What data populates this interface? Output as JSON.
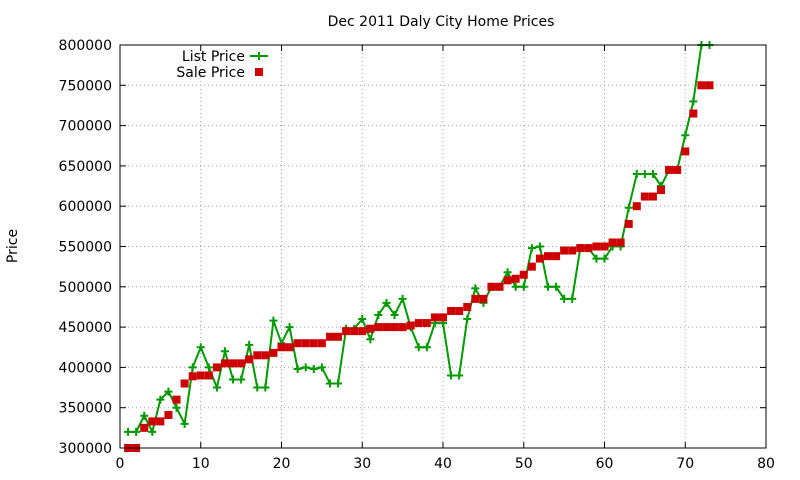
{
  "chart_data": {
    "type": "line",
    "title": "Dec 2011 Daly City Home Prices",
    "xlabel": "",
    "ylabel": "Price",
    "xlim": [
      0,
      80
    ],
    "ylim": [
      300000,
      800000
    ],
    "x_ticks": [
      0,
      10,
      20,
      30,
      40,
      50,
      60,
      70,
      80
    ],
    "y_ticks": [
      300000,
      350000,
      400000,
      450000,
      500000,
      550000,
      600000,
      650000,
      700000,
      750000,
      800000
    ],
    "grid": true,
    "legend_position": "top-left",
    "series": [
      {
        "name": "List Price",
        "marker": "plus",
        "line": true,
        "color": "#009900",
        "x": [
          1,
          2,
          3,
          4,
          5,
          6,
          7,
          8,
          9,
          10,
          11,
          12,
          13,
          14,
          15,
          16,
          17,
          18,
          19,
          20,
          21,
          22,
          23,
          24,
          25,
          26,
          27,
          28,
          29,
          30,
          31,
          32,
          33,
          34,
          35,
          36,
          37,
          38,
          39,
          40,
          41,
          42,
          43,
          44,
          45,
          46,
          47,
          48,
          49,
          50,
          51,
          52,
          53,
          54,
          55,
          56,
          57,
          58,
          59,
          60,
          61,
          62,
          63,
          64,
          65,
          66,
          67,
          68,
          69,
          70,
          71,
          72,
          73
        ],
        "y": [
          320000,
          320000,
          340000,
          320000,
          360000,
          370000,
          350000,
          330000,
          400000,
          425000,
          400000,
          375000,
          420000,
          385000,
          385000,
          428000,
          375000,
          375000,
          458000,
          430000,
          450000,
          398000,
          400000,
          398000,
          400000,
          380000,
          380000,
          448000,
          448000,
          460000,
          435000,
          465000,
          480000,
          465000,
          485000,
          450000,
          425000,
          425000,
          455000,
          455000,
          390000,
          390000,
          460000,
          498000,
          480000,
          500000,
          500000,
          518000,
          500000,
          500000,
          548000,
          550000,
          500000,
          500000,
          485000,
          485000,
          548000,
          548000,
          535000,
          535000,
          550000,
          550000,
          598000,
          640000,
          640000,
          640000,
          625000,
          645000,
          645000,
          688000,
          730000,
          800000,
          800000
        ]
      },
      {
        "name": "Sale Price",
        "marker": "square",
        "line": false,
        "color": "#cc0000",
        "x": [
          1,
          2,
          3,
          4,
          5,
          6,
          7,
          8,
          9,
          10,
          11,
          12,
          13,
          14,
          15,
          16,
          17,
          18,
          19,
          20,
          21,
          22,
          23,
          24,
          25,
          26,
          27,
          28,
          29,
          30,
          31,
          32,
          33,
          34,
          35,
          36,
          37,
          38,
          39,
          40,
          41,
          42,
          43,
          44,
          45,
          46,
          47,
          48,
          49,
          50,
          51,
          52,
          53,
          54,
          55,
          56,
          57,
          58,
          59,
          60,
          61,
          62,
          63,
          64,
          65,
          66,
          67,
          68,
          69,
          70,
          71,
          72,
          73
        ],
        "y": [
          300000,
          300000,
          325000,
          333000,
          333000,
          341000,
          360000,
          380000,
          389000,
          390000,
          390000,
          400000,
          405000,
          405000,
          405000,
          410000,
          415000,
          415000,
          418000,
          425000,
          425000,
          430000,
          430000,
          430000,
          430000,
          438000,
          438000,
          445000,
          445000,
          445000,
          448000,
          450000,
          450000,
          450000,
          450000,
          452000,
          455000,
          455000,
          462000,
          462000,
          470000,
          470000,
          475000,
          485000,
          485000,
          500000,
          500000,
          508000,
          510000,
          515000,
          525000,
          535000,
          538000,
          538000,
          545000,
          545000,
          548000,
          548000,
          550000,
          550000,
          555000,
          555000,
          578000,
          600000,
          612000,
          612000,
          620000,
          645000,
          645000,
          668000,
          715000,
          750000,
          750000
        ]
      }
    ]
  }
}
